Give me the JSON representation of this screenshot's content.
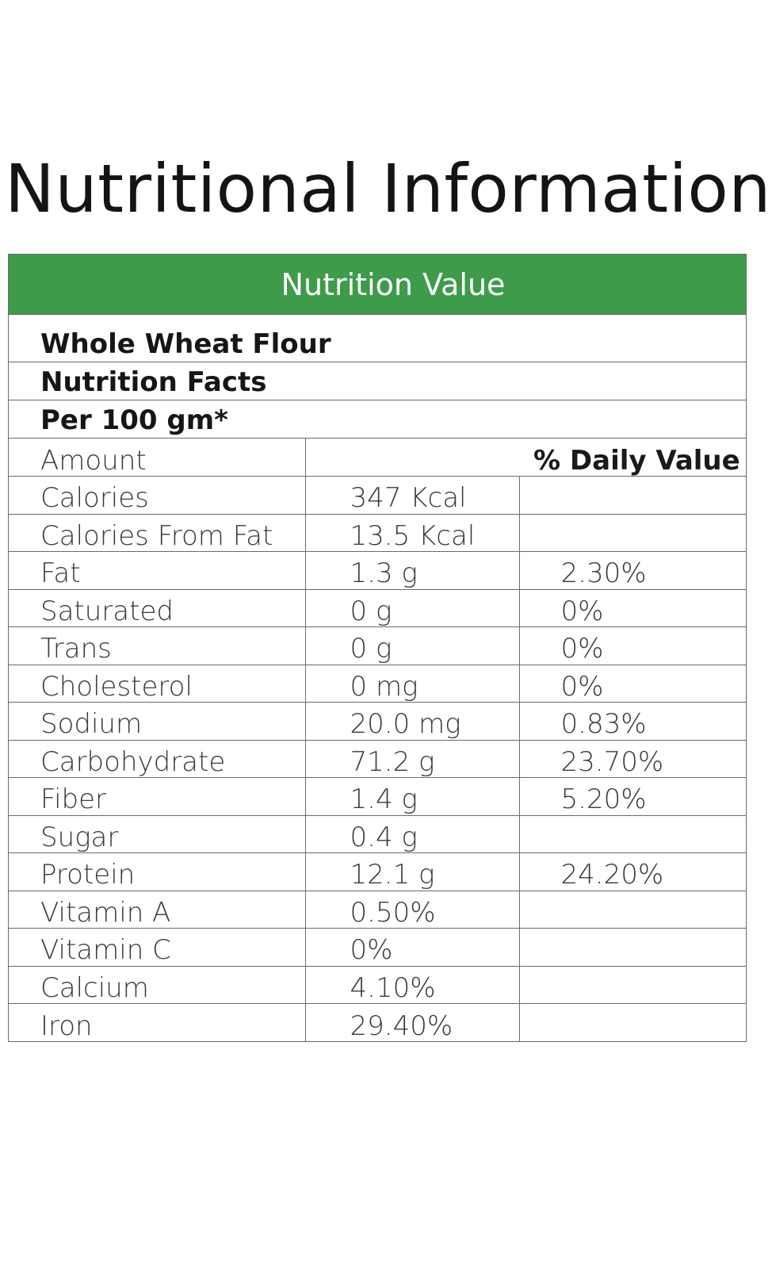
{
  "title": "Nutritional Information",
  "header": "Nutrition Value",
  "info_rows": [
    "Whole Wheat Flour",
    "Nutrition Facts",
    "Per 100 gm*"
  ],
  "table": {
    "columns": [
      "Amount",
      "",
      "% Daily Value"
    ],
    "rows": [
      {
        "name": "Calories",
        "amount": "347 Kcal",
        "dv": ""
      },
      {
        "name": "Calories From Fat",
        "amount": "13.5 Kcal",
        "dv": ""
      },
      {
        "name": "Fat",
        "amount": "1.3 g",
        "dv": "2.30%"
      },
      {
        "name": "Saturated",
        "amount": "0 g",
        "dv": "0%"
      },
      {
        "name": "Trans",
        "amount": "0 g",
        "dv": "0%"
      },
      {
        "name": "Cholesterol",
        "amount": "0 mg",
        "dv": "0%"
      },
      {
        "name": "Sodium",
        "amount": "20.0 mg",
        "dv": "0.83%"
      },
      {
        "name": "Carbohydrate",
        "amount": "71.2 g",
        "dv": "23.70%"
      },
      {
        "name": "Fiber",
        "amount": "1.4 g",
        "dv": "5.20%"
      },
      {
        "name": "Sugar",
        "amount": "0.4 g",
        "dv": ""
      },
      {
        "name": "Protein",
        "amount": "12.1 g",
        "dv": "24.20%"
      },
      {
        "name": "Vitamin A",
        "amount": "0.50%",
        "dv": ""
      },
      {
        "name": "Vitamin C",
        "amount": "0%",
        "dv": ""
      },
      {
        "name": "Calcium",
        "amount": "4.10%",
        "dv": ""
      },
      {
        "name": "Iron",
        "amount": "29.40%",
        "dv": ""
      }
    ]
  },
  "colors": {
    "header_bg": "#3d9b4a",
    "header_text": "#ffffff",
    "border": "#6a6a6a"
  }
}
